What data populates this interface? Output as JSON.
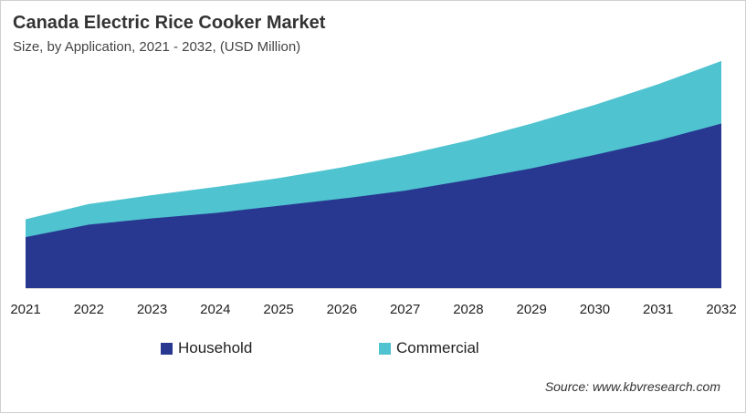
{
  "chart_data": {
    "type": "area",
    "stacked": true,
    "title": "Canada Electric Rice Cooker Market",
    "subtitle": "Size, by Application, 2021 - 2032, (USD Million)",
    "xlabel": "",
    "ylabel": "",
    "categories": [
      "2021",
      "2022",
      "2023",
      "2024",
      "2025",
      "2026",
      "2027",
      "2028",
      "2029",
      "2030",
      "2031",
      "2032"
    ],
    "series": [
      {
        "name": "Household",
        "color": "#283891",
        "values": [
          57,
          71,
          78,
          84,
          92,
          100,
          109,
          121,
          134,
          149,
          165,
          184
        ]
      },
      {
        "name": "Commercial",
        "color": "#4fc3cf",
        "values": [
          20,
          23,
          26,
          29,
          31,
          35,
          40,
          44,
          50,
          56,
          63,
          70
        ]
      }
    ],
    "ylim": [
      0,
      260
    ],
    "grid": false,
    "legend": "bottom"
  },
  "source": "Source: www.kbvresearch.com"
}
